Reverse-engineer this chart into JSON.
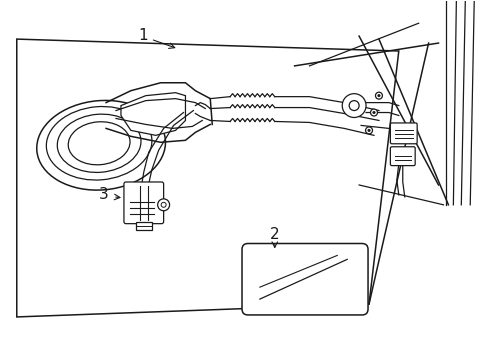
{
  "bg_color": "#ffffff",
  "line_color": "#1a1a1a",
  "label_1": "1",
  "label_2": "2",
  "label_3": "3",
  "figsize": [
    4.89,
    3.6
  ],
  "dpi": 100
}
